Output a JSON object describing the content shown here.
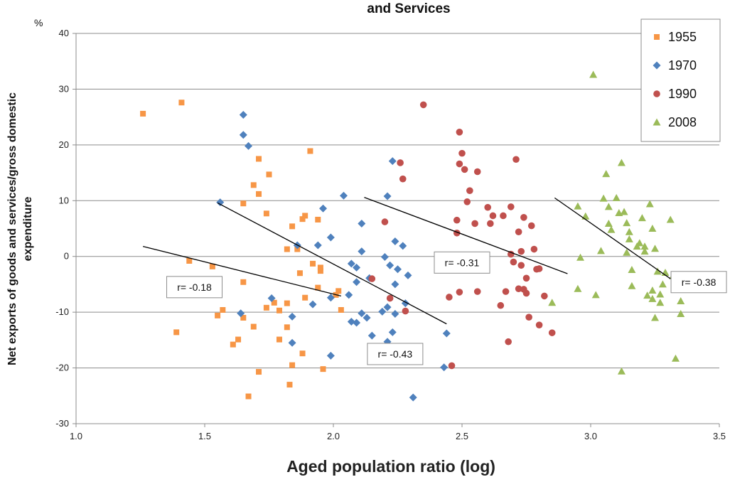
{
  "chart_data": {
    "type": "scatter",
    "title_lines": [
      "and Services"
    ],
    "y_unit": "%",
    "ylabel_lines": [
      "Net exports of goods and services/gross domestic",
      "expenditure"
    ],
    "xlabel": "Aged population ratio (log)",
    "xlim": [
      1.0,
      3.5
    ],
    "ylim": [
      -30,
      40
    ],
    "x_ticks": [
      "1.0",
      "1.5",
      "2.0",
      "2.5",
      "3.0",
      "3.5"
    ],
    "y_ticks": [
      "40",
      "30",
      "20",
      "10",
      "0",
      "-10",
      "-20",
      "-30"
    ],
    "grid": "horizontal",
    "legend_position": "top-right",
    "series": [
      {
        "name": "1955",
        "color": "#f79646",
        "marker": "square",
        "points": [
          [
            1.26,
            25.6
          ],
          [
            1.41,
            27.6
          ],
          [
            1.44,
            -0.8
          ],
          [
            1.53,
            -1.8
          ],
          [
            1.55,
            -10.6
          ],
          [
            1.57,
            -9.6
          ],
          [
            1.39,
            -13.6
          ],
          [
            1.61,
            -15.8
          ],
          [
            1.63,
            -14.9
          ],
          [
            1.65,
            -11.0
          ],
          [
            1.65,
            -4.6
          ],
          [
            1.65,
            9.5
          ],
          [
            1.67,
            -25.1
          ],
          [
            1.69,
            -12.6
          ],
          [
            1.69,
            12.8
          ],
          [
            1.71,
            11.2
          ],
          [
            1.71,
            17.5
          ],
          [
            1.71,
            -20.7
          ],
          [
            1.74,
            -9.2
          ],
          [
            1.74,
            7.7
          ],
          [
            1.75,
            14.7
          ],
          [
            1.77,
            -8.3
          ],
          [
            1.79,
            -9.7
          ],
          [
            1.79,
            -14.9
          ],
          [
            1.82,
            -8.4
          ],
          [
            1.82,
            -12.7
          ],
          [
            1.83,
            -23.0
          ],
          [
            1.82,
            1.3
          ],
          [
            1.84,
            5.4
          ],
          [
            1.84,
            -19.5
          ],
          [
            1.86,
            1.3
          ],
          [
            1.87,
            -3.0
          ],
          [
            1.88,
            6.7
          ],
          [
            1.88,
            -17.4
          ],
          [
            1.89,
            -7.4
          ],
          [
            1.89,
            7.3
          ],
          [
            1.91,
            18.9
          ],
          [
            1.92,
            -1.3
          ],
          [
            1.94,
            -5.6
          ],
          [
            1.94,
            6.6
          ],
          [
            1.95,
            -2.0
          ],
          [
            1.95,
            -2.6
          ],
          [
            1.96,
            -20.2
          ],
          [
            2.01,
            -6.9
          ],
          [
            2.02,
            -6.2
          ],
          [
            2.03,
            -9.6
          ]
        ]
      },
      {
        "name": "1970",
        "color": "#4f81bd",
        "marker": "diamond",
        "points": [
          [
            1.65,
            25.4
          ],
          [
            1.65,
            21.8
          ],
          [
            1.67,
            19.8
          ],
          [
            1.56,
            9.7
          ],
          [
            1.64,
            -10.2
          ],
          [
            1.76,
            -7.5
          ],
          [
            1.84,
            -10.8
          ],
          [
            1.84,
            -15.5
          ],
          [
            1.86,
            2.0
          ],
          [
            1.92,
            -8.6
          ],
          [
            1.94,
            2.0
          ],
          [
            1.96,
            8.6
          ],
          [
            1.99,
            3.4
          ],
          [
            1.99,
            -7.4
          ],
          [
            1.99,
            -17.8
          ],
          [
            2.04,
            10.9
          ],
          [
            2.06,
            -6.9
          ],
          [
            2.07,
            -1.3
          ],
          [
            2.07,
            -11.7
          ],
          [
            2.09,
            -11.9
          ],
          [
            2.09,
            -2.0
          ],
          [
            2.09,
            -4.6
          ],
          [
            2.11,
            5.9
          ],
          [
            2.11,
            0.9
          ],
          [
            2.11,
            -10.2
          ],
          [
            2.13,
            -11.0
          ],
          [
            2.14,
            -3.9
          ],
          [
            2.15,
            -14.2
          ],
          [
            2.19,
            -9.9
          ],
          [
            2.2,
            -0.1
          ],
          [
            2.21,
            10.8
          ],
          [
            2.21,
            -9.1
          ],
          [
            2.21,
            -15.3
          ],
          [
            2.22,
            -1.6
          ],
          [
            2.23,
            17.1
          ],
          [
            2.23,
            -13.6
          ],
          [
            2.24,
            -10.3
          ],
          [
            2.24,
            -5.0
          ],
          [
            2.24,
            2.7
          ],
          [
            2.25,
            -2.3
          ],
          [
            2.27,
            1.9
          ],
          [
            2.28,
            -8.4
          ],
          [
            2.29,
            -3.4
          ],
          [
            2.31,
            -25.3
          ],
          [
            2.43,
            -19.9
          ],
          [
            2.44,
            -13.8
          ]
        ]
      },
      {
        "name": "1990",
        "color": "#c0504d",
        "marker": "circle",
        "points": [
          [
            2.15,
            -4.0
          ],
          [
            2.2,
            6.2
          ],
          [
            2.22,
            -7.5
          ],
          [
            2.26,
            16.8
          ],
          [
            2.27,
            13.9
          ],
          [
            2.28,
            -9.8
          ],
          [
            2.35,
            27.2
          ],
          [
            2.46,
            -19.6
          ],
          [
            2.49,
            22.3
          ],
          [
            2.49,
            16.6
          ],
          [
            2.5,
            18.5
          ],
          [
            2.51,
            15.6
          ],
          [
            2.52,
            9.8
          ],
          [
            2.53,
            11.8
          ],
          [
            2.55,
            5.9
          ],
          [
            2.56,
            15.2
          ],
          [
            2.56,
            -6.3
          ],
          [
            2.6,
            8.8
          ],
          [
            2.61,
            5.9
          ],
          [
            2.62,
            7.3
          ],
          [
            2.65,
            -8.8
          ],
          [
            2.66,
            7.3
          ],
          [
            2.67,
            -6.3
          ],
          [
            2.68,
            -15.3
          ],
          [
            2.69,
            8.9
          ],
          [
            2.69,
            0.4
          ],
          [
            2.7,
            -1.0
          ],
          [
            2.71,
            17.4
          ],
          [
            2.72,
            -5.8
          ],
          [
            2.72,
            4.4
          ],
          [
            2.73,
            -1.6
          ],
          [
            2.73,
            0.9
          ],
          [
            2.74,
            -5.9
          ],
          [
            2.74,
            7.0
          ],
          [
            2.75,
            -3.9
          ],
          [
            2.76,
            -10.9
          ],
          [
            2.77,
            5.5
          ],
          [
            2.78,
            1.3
          ],
          [
            2.79,
            -2.3
          ],
          [
            2.8,
            -12.3
          ],
          [
            2.82,
            -7.1
          ],
          [
            2.85,
            -13.7
          ],
          [
            2.48,
            6.5
          ],
          [
            2.49,
            -6.4
          ],
          [
            2.48,
            4.2
          ],
          [
            2.45,
            -7.3
          ],
          [
            2.75,
            -6.6
          ],
          [
            2.8,
            -2.2
          ]
        ]
      },
      {
        "name": "2008",
        "color": "#9bbb59",
        "marker": "triangle",
        "points": [
          [
            3.01,
            32.6
          ],
          [
            2.85,
            -8.3
          ],
          [
            2.95,
            9.0
          ],
          [
            2.96,
            -0.2
          ],
          [
            2.98,
            7.2
          ],
          [
            3.02,
            -6.9
          ],
          [
            3.04,
            1.0
          ],
          [
            3.05,
            10.4
          ],
          [
            3.06,
            14.8
          ],
          [
            3.07,
            8.9
          ],
          [
            3.07,
            5.9
          ],
          [
            3.08,
            4.8
          ],
          [
            3.1,
            10.5
          ],
          [
            3.11,
            7.8
          ],
          [
            3.12,
            16.8
          ],
          [
            3.12,
            -20.6
          ],
          [
            3.13,
            8.0
          ],
          [
            3.14,
            6.0
          ],
          [
            3.15,
            4.4
          ],
          [
            3.15,
            3.1
          ],
          [
            3.16,
            -5.3
          ],
          [
            3.16,
            -2.4
          ],
          [
            3.18,
            1.8
          ],
          [
            3.19,
            2.4
          ],
          [
            3.2,
            6.9
          ],
          [
            3.21,
            0.9
          ],
          [
            3.21,
            1.8
          ],
          [
            3.22,
            -7.0
          ],
          [
            3.23,
            9.4
          ],
          [
            3.24,
            -7.6
          ],
          [
            3.24,
            -6.1
          ],
          [
            3.24,
            5.0
          ],
          [
            3.25,
            1.4
          ],
          [
            3.25,
            -11.0
          ],
          [
            3.26,
            -2.7
          ],
          [
            3.27,
            -8.3
          ],
          [
            3.27,
            -6.8
          ],
          [
            3.28,
            -5.0
          ],
          [
            3.29,
            -2.9
          ],
          [
            3.31,
            6.6
          ],
          [
            3.33,
            -18.3
          ],
          [
            3.35,
            -8.0
          ],
          [
            3.35,
            -10.3
          ],
          [
            3.32,
            -3.5
          ],
          [
            2.95,
            -5.8
          ],
          [
            3.14,
            0.7
          ]
        ]
      }
    ],
    "regression_lines": [
      {
        "series": "1955",
        "x": [
          1.26,
          2.03
        ],
        "y": [
          1.8,
          -7.1
        ]
      },
      {
        "series": "1970",
        "x": [
          1.55,
          2.44
        ],
        "y": [
          9.6,
          -12.1
        ]
      },
      {
        "series": "1990",
        "x": [
          2.12,
          2.91
        ],
        "y": [
          10.6,
          -3.1
        ]
      },
      {
        "series": "2008",
        "x": [
          2.86,
          3.31
        ],
        "y": [
          10.5,
          -4.0
        ]
      }
    ],
    "annotations": [
      {
        "text": "r= -0.18",
        "x": 1.46,
        "y": -5.5
      },
      {
        "text": "r= -0.43",
        "x": 2.24,
        "y": -17.5
      },
      {
        "text": "r= -0.31",
        "x": 2.5,
        "y": -1.1
      },
      {
        "text": "r= -0.38",
        "x": 3.42,
        "y": -4.6
      }
    ]
  }
}
